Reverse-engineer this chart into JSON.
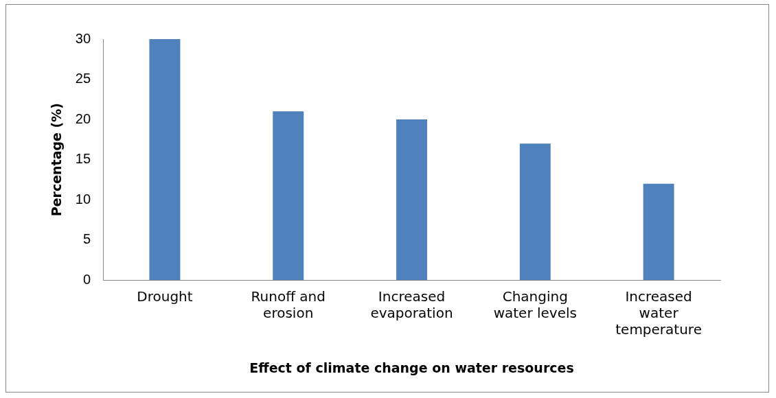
{
  "chart_data": {
    "type": "bar",
    "xlabel": "Effect of climate change on water resources",
    "ylabel": "Percentage (%)",
    "categories": [
      "Drought",
      "Runoff and erosion",
      "Increased evaporation",
      "Changing water levels",
      "Increased water temperature"
    ],
    "values": [
      30,
      21,
      20,
      17,
      12
    ],
    "color": "#4f81bd",
    "ylim": [
      0,
      30
    ],
    "yticks": [
      0,
      5,
      10,
      15,
      20,
      25,
      30
    ],
    "grid": false,
    "legend": false
  }
}
